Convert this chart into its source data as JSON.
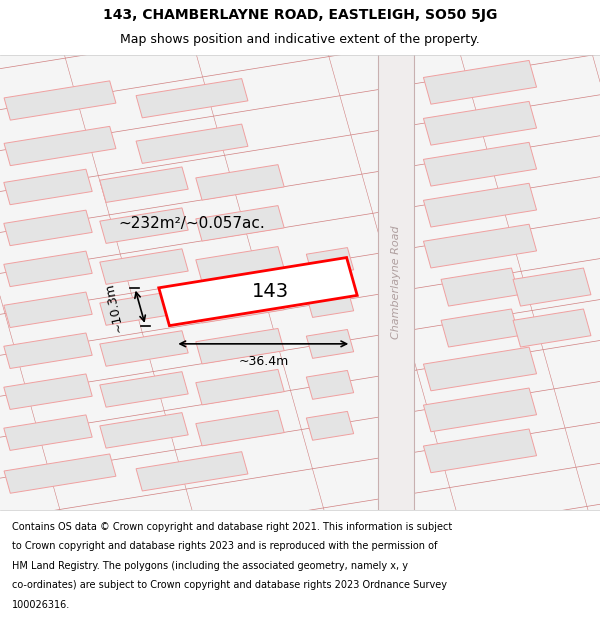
{
  "title_line1": "143, CHAMBERLAYNE ROAD, EASTLEIGH, SO50 5JG",
  "title_line2": "Map shows position and indicative extent of the property.",
  "copyright_text": "Contains OS data © Crown copyright and database right 2021. This information is subject to Crown copyright and database rights 2023 and is reproduced with the permission of HM Land Registry. The polygons (including the associated geometry, namely x, y co-ordinates) are subject to Crown copyright and database rights 2023 Ordnance Survey 100026316.",
  "area_label": "~232m²/~0.057ac.",
  "width_label": "~36.4m",
  "height_label": "~10.3m",
  "property_number": "143",
  "road_label": "Chamberlayne Road",
  "bg_color": "#ffffff",
  "map_bg": "#f5f5f5",
  "building_fill": "#e8e8e8",
  "building_outline": "#f0a0a0",
  "road_fill": "#ffffff",
  "highlight_color": "#ff0000",
  "road_line_color": "#d08080",
  "title_fontsize": 10,
  "subtitle_fontsize": 9,
  "copyright_fontsize": 7,
  "figsize": [
    6.0,
    6.25
  ],
  "dpi": 100
}
